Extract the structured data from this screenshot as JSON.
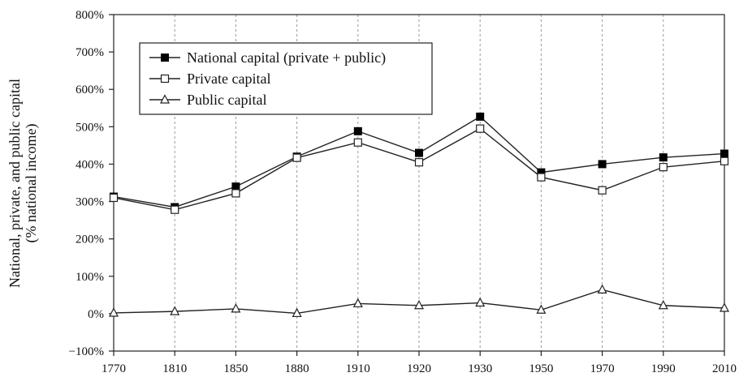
{
  "chart_data": {
    "type": "line",
    "ylabel_line1": "National, private, and public capital",
    "ylabel_line2": "(% national income)",
    "x": [
      1770,
      1810,
      1850,
      1880,
      1910,
      1920,
      1930,
      1950,
      1970,
      1990,
      2010
    ],
    "ylim": [
      -100,
      800
    ],
    "yticks": [
      -100,
      0,
      100,
      200,
      300,
      400,
      500,
      600,
      700,
      800
    ],
    "ytick_labels": [
      "−100%",
      "0%",
      "100%",
      "200%",
      "300%",
      "400%",
      "500%",
      "600%",
      "700%",
      "800%"
    ],
    "xtick_labels": [
      "1770",
      "1810",
      "1850",
      "1880",
      "1910",
      "1920",
      "1930",
      "1950",
      "1970",
      "1990",
      "2010"
    ],
    "grid": "vertical dotted",
    "legend_position": "top-left",
    "series": [
      {
        "name": "National capital (private + public)",
        "marker": "filled-square",
        "values": [
          313,
          285,
          340,
          420,
          488,
          430,
          527,
          378,
          400,
          418,
          428
        ]
      },
      {
        "name": "Private capital",
        "marker": "open-square",
        "values": [
          310,
          278,
          322,
          417,
          458,
          405,
          495,
          365,
          330,
          392,
          408
        ]
      },
      {
        "name": "Public capital",
        "marker": "open-triangle",
        "values": [
          2,
          6,
          13,
          1,
          27,
          22,
          29,
          10,
          64,
          22,
          15
        ]
      }
    ]
  }
}
